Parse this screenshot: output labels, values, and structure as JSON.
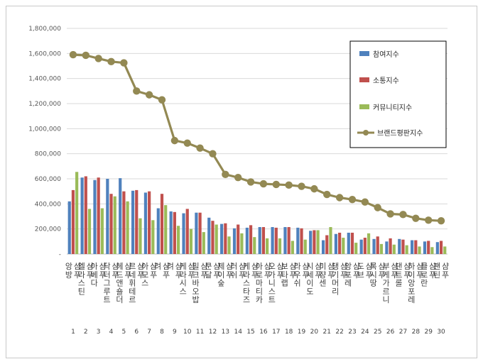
{
  "chart_data": {
    "type": "bar",
    "categories": [
      "앙방샴푸",
      "엘라스틴샴푸",
      "아베다샴푸",
      "닥터그루트샴푸",
      "헤드앤숄더샴푸",
      "르네휘테르샴푸",
      "아모스샴푸",
      "려샴푸",
      "려샴푸",
      "케라시스샴푸",
      "밀크바오밥샴푸",
      "쿤달샴푸",
      "제이숲샴푸",
      "러쉬샴푸",
      "케라스타즈샴푸",
      "아로마티카샴푸",
      "오가니스트샴푸",
      "보타랩샴푸",
      "라우쉬샴푸",
      "시세이도샴푸",
      "미쟝센샴푸",
      "댕기머리샴푸",
      "앙포레샴푸",
      "도브샴푸",
      "록시땅샴푸",
      "부케가르니샴푸",
      "댄트롤샴푸",
      "하이앙포레샴푸",
      "클로란샴푸",
      "팬틴샴푸"
    ],
    "category_display": [
      "앙방 샴푸",
      "엘라스틴 샴푸",
      "아베다 샴푸",
      "닥터그루트 샴푸",
      "헤드앤숄더 샴푸",
      "르네휘테르 샴푸",
      "아모스 샴푸",
      "려 샴푸",
      "려 샴푸",
      "케라시스 샴푸",
      "밀크바오밥 샴푸",
      "쿤달 샴푸",
      "제이숲 샴푸",
      "러쉬 샴푸",
      "케라스타즈 샴푸",
      "아로마티카 샴푸",
      "오가니스트 샴푸",
      "보타랩 샴푸",
      "라우쉬 샴푸",
      "시세이도 샴푸",
      "미쟝센 샴푸",
      "댕기머리 샴푸",
      "앙포레 샴푸",
      "도브 샴푸",
      "록시땅 샴푸",
      "부케가르니 샴푸",
      "댄트롤 샴푸",
      "하이앙포레 샴푸",
      "클로란 샴푸",
      "팬틴 샴푸"
    ],
    "index_labels": [
      "1",
      "2",
      "3",
      "4",
      "5",
      "6",
      "7",
      "8",
      "9",
      "10",
      "11",
      "12",
      "13",
      "14",
      "15",
      "16",
      "17",
      "18",
      "19",
      "20",
      "21",
      "22",
      "23",
      "24",
      "25",
      "26",
      "27",
      "28",
      "29",
      "30"
    ],
    "series": [
      {
        "name": "참여지수",
        "kind": "bar",
        "color": "#4f81bd",
        "values": [
          420000,
          610000,
          590000,
          600000,
          605000,
          505000,
          490000,
          365000,
          340000,
          325000,
          330000,
          290000,
          240000,
          205000,
          210000,
          215000,
          215000,
          215000,
          210000,
          185000,
          110000,
          160000,
          170000,
          115000,
          120000,
          100000,
          120000,
          110000,
          100000,
          95000
        ]
      },
      {
        "name": "소통지수",
        "kind": "bar",
        "color": "#c0504d",
        "values": [
          510000,
          620000,
          610000,
          480000,
          500000,
          510000,
          500000,
          480000,
          335000,
          360000,
          330000,
          265000,
          245000,
          235000,
          230000,
          215000,
          210000,
          215000,
          205000,
          190000,
          150000,
          170000,
          170000,
          130000,
          140000,
          125000,
          115000,
          110000,
          105000,
          105000
        ]
      },
      {
        "name": "커뮤니티지수",
        "kind": "bar",
        "color": "#9bbb59",
        "values": [
          655000,
          360000,
          365000,
          460000,
          420000,
          285000,
          270000,
          390000,
          225000,
          200000,
          175000,
          235000,
          140000,
          165000,
          135000,
          125000,
          125000,
          105000,
          115000,
          190000,
          215000,
          130000,
          90000,
          165000,
          80000,
          75000,
          70000,
          60000,
          55000,
          60000
        ]
      },
      {
        "name": "브랜드평판지수",
        "kind": "line",
        "color": "#938953",
        "values": [
          1590000,
          1585000,
          1560000,
          1535000,
          1525000,
          1300000,
          1270000,
          1230000,
          905000,
          885000,
          845000,
          800000,
          635000,
          610000,
          575000,
          560000,
          555000,
          550000,
          540000,
          520000,
          475000,
          450000,
          435000,
          415000,
          370000,
          320000,
          315000,
          285000,
          270000,
          265000
        ]
      }
    ],
    "y_ticks": [
      "-",
      "200,000",
      "400,000",
      "600,000",
      "800,000",
      "1,000,000",
      "1,200,000",
      "1,400,000",
      "1,600,000",
      "1,800,000"
    ],
    "ylim": [
      0,
      1800000
    ],
    "grid": true,
    "legend_position": "top-right",
    "title": "",
    "xlabel": "",
    "ylabel": ""
  }
}
